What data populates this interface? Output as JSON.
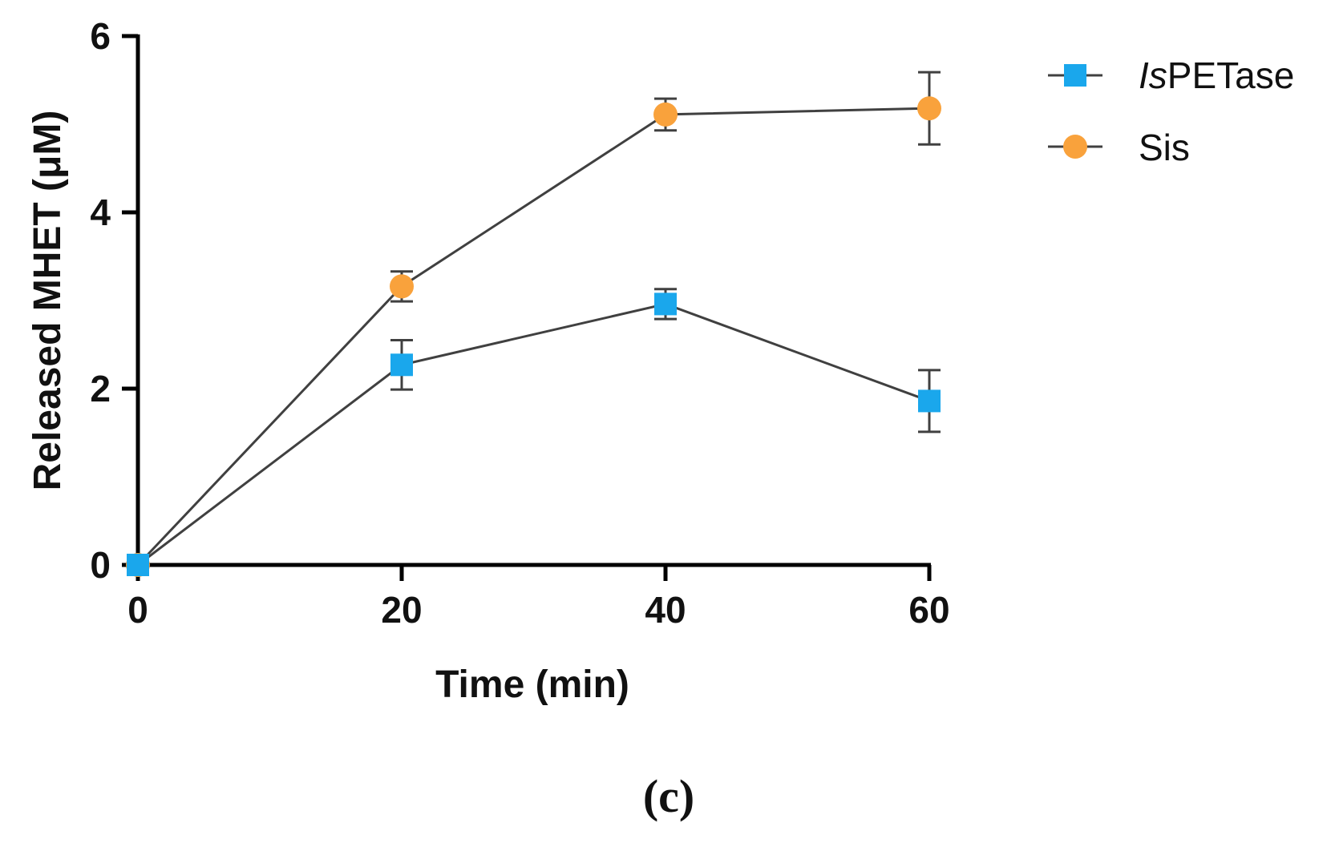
{
  "chart_data": {
    "type": "line",
    "title": "",
    "xlabel": "Time (min)",
    "ylabel": "Released MHET (μM)",
    "x": [
      0,
      20,
      40,
      60
    ],
    "xlim": [
      0,
      60
    ],
    "ylim": [
      0,
      6
    ],
    "xticks": [
      "0",
      "20",
      "40",
      "60"
    ],
    "yticks": [
      "0",
      "2",
      "4",
      "6"
    ],
    "grid": false,
    "legend_position": "top-right",
    "series": [
      {
        "name_italic": "Is",
        "name_rest": "PETase",
        "marker": "square",
        "color": "#1AA7EC",
        "values": [
          0,
          2.27,
          2.96,
          1.86
        ],
        "errors": [
          0,
          0.28,
          0.17,
          0.35
        ]
      },
      {
        "name": "Sis",
        "marker": "circle",
        "color": "#F9A23C",
        "values": [
          0,
          3.16,
          5.11,
          5.18
        ],
        "errors": [
          0,
          0.17,
          0.18,
          0.41
        ]
      }
    ],
    "panel_label": "(c)"
  }
}
